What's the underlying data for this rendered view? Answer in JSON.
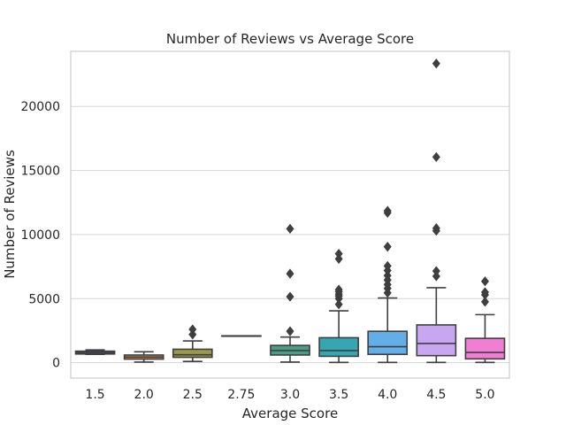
{
  "chart_data": {
    "type": "box",
    "title": "Number of Reviews vs Average Score",
    "xlabel": "Average Score",
    "ylabel": "Number of Reviews",
    "ylim": [
      -1200,
      24300
    ],
    "yticks": [
      0,
      5000,
      10000,
      15000,
      20000
    ],
    "grid": true,
    "categories": [
      "1.5",
      "2.0",
      "2.5",
      "2.75",
      "3.0",
      "3.5",
      "4.0",
      "4.5",
      "5.0"
    ],
    "boxes": [
      {
        "category": "1.5",
        "color": "#5b74ae",
        "whisker_low": 650,
        "q1": 680,
        "median": 800,
        "q3": 900,
        "whisker_high": 1000,
        "outliers": []
      },
      {
        "category": "2.0",
        "color": "#d98c4f",
        "whisker_low": 50,
        "q1": 280,
        "median": 440,
        "q3": 600,
        "whisker_high": 850,
        "outliers": []
      },
      {
        "category": "2.5",
        "color": "#9a9a4a",
        "whisker_low": 100,
        "q1": 420,
        "median": 620,
        "q3": 1050,
        "whisker_high": 1700,
        "outliers": [
          2200,
          2600
        ]
      },
      {
        "category": "2.75",
        "color": "#5c9f5c",
        "whisker_low": 2100,
        "q1": 2100,
        "median": 2100,
        "q3": 2100,
        "whisker_high": 2100,
        "outliers": []
      },
      {
        "category": "3.0",
        "color": "#4a9e86",
        "whisker_low": 50,
        "q1": 600,
        "median": 950,
        "q3": 1350,
        "whisker_high": 2000,
        "outliers": [
          2450,
          5150,
          6950,
          10450
        ]
      },
      {
        "category": "3.5",
        "color": "#36a6b2",
        "whisker_low": 20,
        "q1": 500,
        "median": 950,
        "q3": 1950,
        "whisker_high": 4050,
        "outliers": [
          4550,
          5000,
          5200,
          5350,
          5550,
          5700,
          8100,
          8500
        ]
      },
      {
        "category": "4.0",
        "color": "#64aee8",
        "whisker_low": 20,
        "q1": 650,
        "median": 1250,
        "q3": 2450,
        "whisker_high": 5050,
        "outliers": [
          5450,
          5800,
          6100,
          6450,
          6800,
          7200,
          7550,
          9050,
          11700,
          11850
        ]
      },
      {
        "category": "4.5",
        "color": "#c9a6f0",
        "whisker_low": 20,
        "q1": 550,
        "median": 1500,
        "q3": 2950,
        "whisker_high": 5850,
        "outliers": [
          6750,
          7150,
          10300,
          10500,
          16050,
          23350
        ]
      },
      {
        "category": "5.0",
        "color": "#f07fd4",
        "whisker_low": 20,
        "q1": 300,
        "median": 800,
        "q3": 1900,
        "whisker_high": 3750,
        "outliers": [
          4750,
          5300,
          5500,
          6350
        ]
      }
    ]
  }
}
